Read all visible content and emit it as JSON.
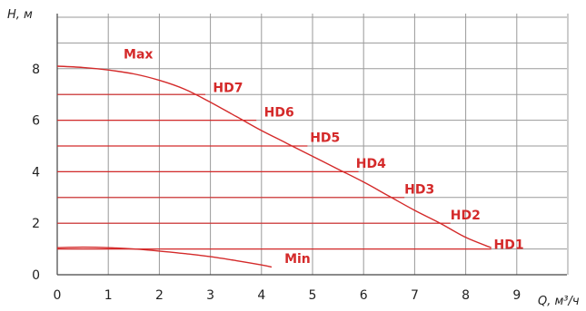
{
  "chart_data": {
    "type": "line",
    "xlabel": "Q, м³/ч",
    "ylabel": "H, м",
    "xlim": [
      0,
      10
    ],
    "ylim": [
      0,
      10
    ],
    "x_ticks": [
      0,
      1,
      2,
      3,
      4,
      5,
      6,
      7,
      8,
      9
    ],
    "y_ticks": [
      0,
      2,
      4,
      6,
      8
    ],
    "grid": true,
    "colors": {
      "curve": "#d42a2a",
      "label": "#d42a2a",
      "grid": "#9a9a9a",
      "axis": "#444444"
    },
    "series": [
      {
        "name": "Max",
        "kind": "curve",
        "x": [
          0,
          0.5,
          1,
          1.5,
          2,
          2.5,
          3,
          3.5,
          4,
          4.5,
          5,
          5.5,
          6,
          6.5,
          7,
          7.5,
          8,
          8.5
        ],
        "y": [
          8.1,
          8.05,
          7.95,
          7.8,
          7.55,
          7.2,
          6.7,
          6.15,
          5.6,
          5.1,
          4.6,
          4.1,
          3.6,
          3.05,
          2.5,
          2.0,
          1.45,
          1.05
        ]
      },
      {
        "name": "HD7",
        "kind": "level",
        "x": [
          0,
          2.9
        ],
        "y": [
          7,
          7
        ]
      },
      {
        "name": "HD6",
        "kind": "level",
        "x": [
          0,
          3.9
        ],
        "y": [
          6,
          6
        ]
      },
      {
        "name": "HD5",
        "kind": "level",
        "x": [
          0,
          4.9
        ],
        "y": [
          5,
          5
        ]
      },
      {
        "name": "HD4",
        "kind": "level",
        "x": [
          0,
          5.9
        ],
        "y": [
          4,
          4
        ]
      },
      {
        "name": "HD3",
        "kind": "level",
        "x": [
          0,
          6.8
        ],
        "y": [
          3,
          3
        ]
      },
      {
        "name": "HD2",
        "kind": "level",
        "x": [
          0,
          7.7
        ],
        "y": [
          2,
          2
        ]
      },
      {
        "name": "HD1",
        "kind": "level",
        "x": [
          0,
          8.5
        ],
        "y": [
          1,
          1
        ]
      },
      {
        "name": "Min",
        "kind": "curve",
        "x": [
          0,
          0.5,
          1,
          1.5,
          2,
          2.5,
          3,
          3.5,
          4,
          4.2
        ],
        "y": [
          1.05,
          1.07,
          1.05,
          1.0,
          0.92,
          0.82,
          0.7,
          0.55,
          0.38,
          0.3
        ]
      }
    ],
    "annotations": [
      {
        "text": "Max",
        "x": 1.3,
        "y": 8.4
      },
      {
        "text": "HD7",
        "x": 3.05,
        "y": 7.1
      },
      {
        "text": "HD6",
        "x": 4.05,
        "y": 6.15
      },
      {
        "text": "HD5",
        "x": 4.95,
        "y": 5.15
      },
      {
        "text": "HD4",
        "x": 5.85,
        "y": 4.15
      },
      {
        "text": "HD3",
        "x": 6.8,
        "y": 3.15
      },
      {
        "text": "HD2",
        "x": 7.7,
        "y": 2.15
      },
      {
        "text": "HD1",
        "x": 8.55,
        "y": 1.0
      },
      {
        "text": "Min",
        "x": 4.45,
        "y": 0.45
      }
    ]
  }
}
